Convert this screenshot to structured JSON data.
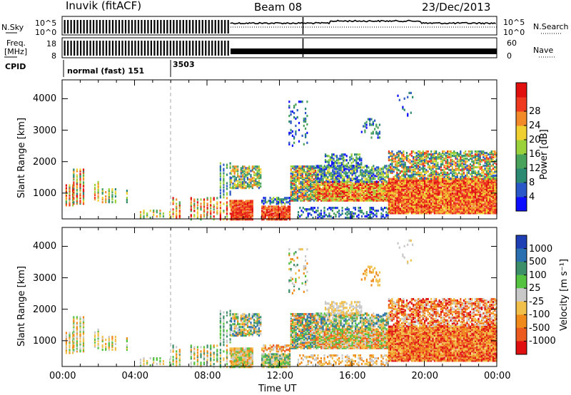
{
  "header": {
    "station": "Inuvik (fitACF)",
    "beam": "Beam 08",
    "date": "23/Dec/2013"
  },
  "top_panels": {
    "nsky_label": "N.Sky",
    "nsky_ticks": [
      "10^5",
      "10^0"
    ],
    "nsearch_label": "N.Search",
    "nsearch_ticks": [
      "10^5",
      "10^0"
    ],
    "freq_label_line1": "Freq.",
    "freq_label_line2": "[MHz]",
    "freq_ticks": [
      "18",
      "8"
    ],
    "nave_label": "Nave",
    "nave_ticks": [
      "60",
      "0"
    ],
    "cpid_label": "CPID",
    "cpid_entries": [
      {
        "text": "normal (fast) 151",
        "start_hour": 0
      },
      {
        "text": "3503",
        "start_hour": 6
      }
    ]
  },
  "chart_data": [
    {
      "type": "heatmap",
      "panel": "power",
      "ylabel": "Slant Range [km]",
      "xlabel": "",
      "x_range_hours": [
        0,
        24
      ],
      "ylim": [
        180,
        4600
      ],
      "y_ticks": [
        1000,
        2000,
        3000,
        4000
      ],
      "colorbar_label": "Power [dB]",
      "colorbar_ticks": [
        "4",
        "8",
        "12",
        "16",
        "20",
        "24",
        "28"
      ],
      "colorbar_colors": [
        "#0d0dff",
        "#2a58c8",
        "#2c8a73",
        "#4aa35a",
        "#9bd23c",
        "#f0d030",
        "#f28a2a",
        "#ef3a1f",
        "#e20f0f"
      ],
      "dominant_level": "strong returns 300-1500 km after 12:00"
    },
    {
      "type": "heatmap",
      "panel": "velocity",
      "ylabel": "Slant Range [km]",
      "xlabel": "Time UT",
      "x_range_hours": [
        0,
        24
      ],
      "ylim": [
        180,
        4600
      ],
      "y_ticks": [
        1000,
        2000,
        3000,
        4000
      ],
      "x_ticks": [
        "00:00",
        "04:00",
        "08:00",
        "12:00",
        "16:00",
        "20:00",
        "00:00"
      ],
      "colorbar_label": "Velocity [m s⁻¹]",
      "colorbar_ticks": [
        "1000",
        "500",
        "100",
        "25",
        "-25",
        "-100",
        "-500",
        "-1000"
      ],
      "colorbar_colors": [
        "#1f3fb5",
        "#2a6fb0",
        "#3d8f6a",
        "#55c240",
        "#c8c8c8",
        "#f1c04a",
        "#f08a1a",
        "#ec5a20",
        "#e01010"
      ]
    }
  ]
}
